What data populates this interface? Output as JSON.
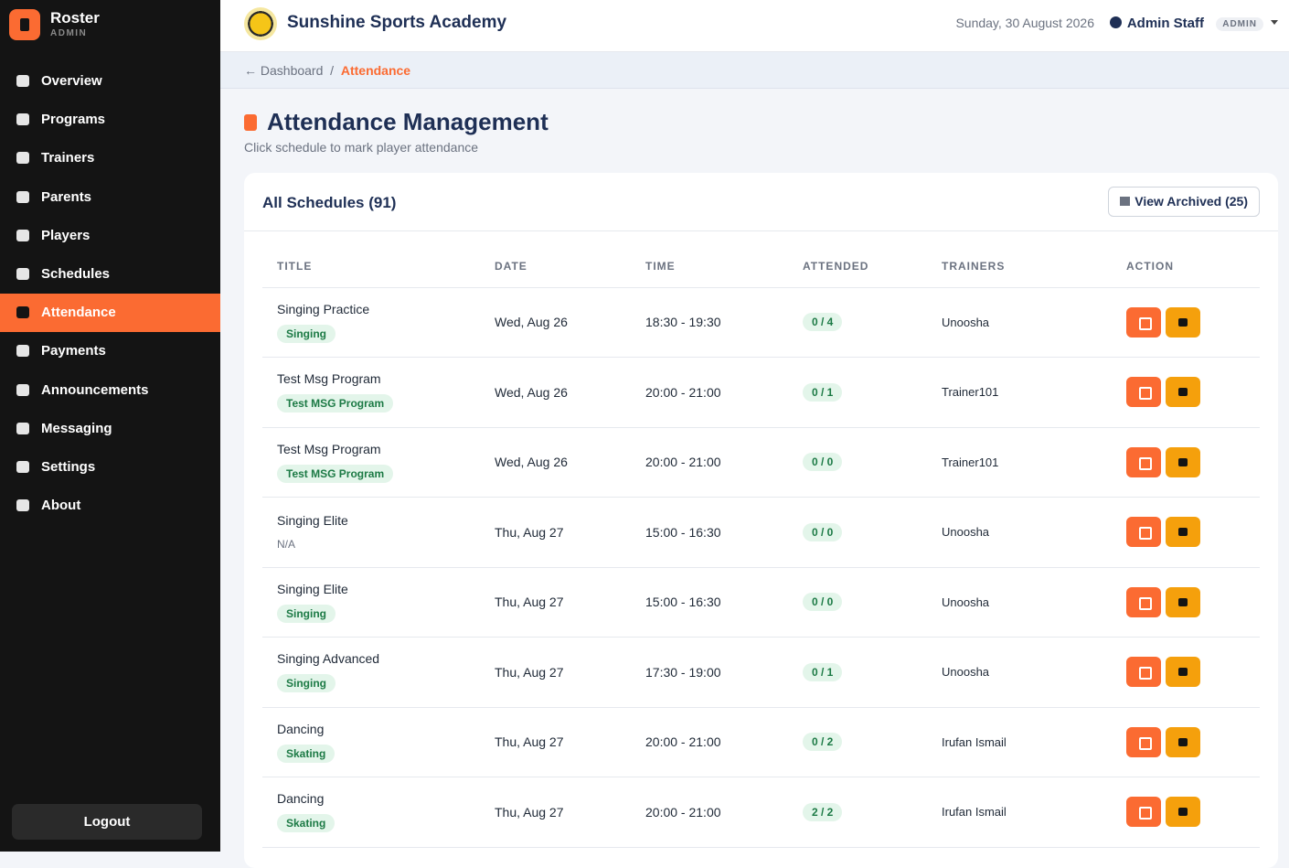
{
  "sidebar": {
    "brand": "Roster",
    "role": "ADMIN",
    "nav": [
      {
        "label": "Overview",
        "active": false
      },
      {
        "label": "Programs",
        "active": false
      },
      {
        "label": "Trainers",
        "active": false
      },
      {
        "label": "Parents",
        "active": false
      },
      {
        "label": "Players",
        "active": false
      },
      {
        "label": "Schedules",
        "active": false
      },
      {
        "label": "Attendance",
        "active": true
      },
      {
        "label": "Payments",
        "active": false
      },
      {
        "label": "Announcements",
        "active": false
      },
      {
        "label": "Messaging",
        "active": false
      },
      {
        "label": "Settings",
        "active": false
      },
      {
        "label": "About",
        "active": false
      }
    ],
    "logout": "Logout"
  },
  "header": {
    "academy": "Sunshine Sports Academy",
    "date": "Sunday, 30 August 2026",
    "user": "Admin Staff",
    "badge": "ADMIN"
  },
  "breadcrumb": {
    "back": "Dashboard",
    "separator": "/",
    "current": "Attendance"
  },
  "page": {
    "title": "Attendance Management",
    "subtitle": "Click schedule to mark player attendance"
  },
  "card": {
    "title": "All Schedules (91)",
    "archived_button": "View Archived (25)"
  },
  "table": {
    "columns": [
      "TITLE",
      "DATE",
      "TIME",
      "ATTENDED",
      "TRAINERS",
      "ACTION"
    ],
    "rows": [
      {
        "title": "Singing Practice",
        "program": {
          "label": "Singing",
          "badge": true
        },
        "date": "Wed, Aug 26",
        "time": "18:30 - 19:30",
        "attended": "0 / 4",
        "trainers": "Unoosha"
      },
      {
        "title": "Test Msg Program",
        "program": {
          "label": "Test MSG Program",
          "badge": true
        },
        "date": "Wed, Aug 26",
        "time": "20:00 - 21:00",
        "attended": "0 / 1",
        "trainers": "Trainer101"
      },
      {
        "title": "Test Msg Program",
        "program": {
          "label": "Test MSG Program",
          "badge": true
        },
        "date": "Wed, Aug 26",
        "time": "20:00 - 21:00",
        "attended": "0 / 0",
        "trainers": "Trainer101"
      },
      {
        "title": "Singing Elite",
        "program": {
          "label": "N/A",
          "badge": false
        },
        "date": "Thu, Aug 27",
        "time": "15:00 - 16:30",
        "attended": "0 / 0",
        "trainers": "Unoosha"
      },
      {
        "title": "Singing Elite",
        "program": {
          "label": "Singing",
          "badge": true
        },
        "date": "Thu, Aug 27",
        "time": "15:00 - 16:30",
        "attended": "0 / 0",
        "trainers": "Unoosha"
      },
      {
        "title": "Singing Advanced",
        "program": {
          "label": "Singing",
          "badge": true
        },
        "date": "Thu, Aug 27",
        "time": "17:30 - 19:00",
        "attended": "0 / 1",
        "trainers": "Unoosha"
      },
      {
        "title": "Dancing",
        "program": {
          "label": "Skating",
          "badge": true
        },
        "date": "Thu, Aug 27",
        "time": "20:00 - 21:00",
        "attended": "0 / 2",
        "trainers": "Irufan Ismail"
      },
      {
        "title": "Dancing",
        "program": {
          "label": "Skating",
          "badge": true
        },
        "date": "Thu, Aug 27",
        "time": "20:00 - 21:00",
        "attended": "2 / 2",
        "trainers": "Irufan Ismail"
      }
    ]
  }
}
